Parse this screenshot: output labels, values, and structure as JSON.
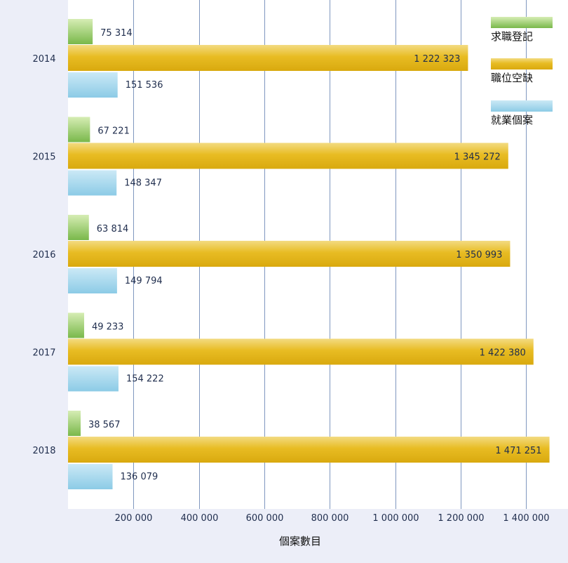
{
  "chart_data": {
    "type": "bar",
    "orientation": "horizontal",
    "categories": [
      "2014",
      "2015",
      "2016",
      "2017",
      "2018"
    ],
    "series": [
      {
        "name": "求職登記",
        "values": [
          75314,
          67221,
          63814,
          49233,
          38567
        ],
        "value_labels": [
          "75 314",
          "67 221",
          "63 814",
          "49 233",
          "38 567"
        ],
        "color": "#8CC25E"
      },
      {
        "name": "職位空缺",
        "values": [
          1222323,
          1345272,
          1350993,
          1422380,
          1471251
        ],
        "value_labels": [
          "1 222 323",
          "1 345 272",
          "1 350 993",
          "1 422 380",
          "1 471 251"
        ],
        "color": "#E8BC23"
      },
      {
        "name": "就業個案",
        "values": [
          151536,
          148347,
          149794,
          154222,
          136079
        ],
        "value_labels": [
          "151 536",
          "148 347",
          "149 794",
          "154 222",
          "136 079"
        ],
        "color": "#A8D8EE"
      }
    ],
    "xlabel": "個案數目",
    "xlim": [
      0,
      1500000
    ],
    "xticks": [
      200000,
      400000,
      600000,
      800000,
      1000000,
      1200000,
      1400000
    ],
    "xtick_labels": [
      "200 000",
      "400 000",
      "600 000",
      "800 000",
      "1 000 000",
      "1 200 000",
      "1 400 000"
    ],
    "grid": true,
    "legend_position": "top-right"
  }
}
